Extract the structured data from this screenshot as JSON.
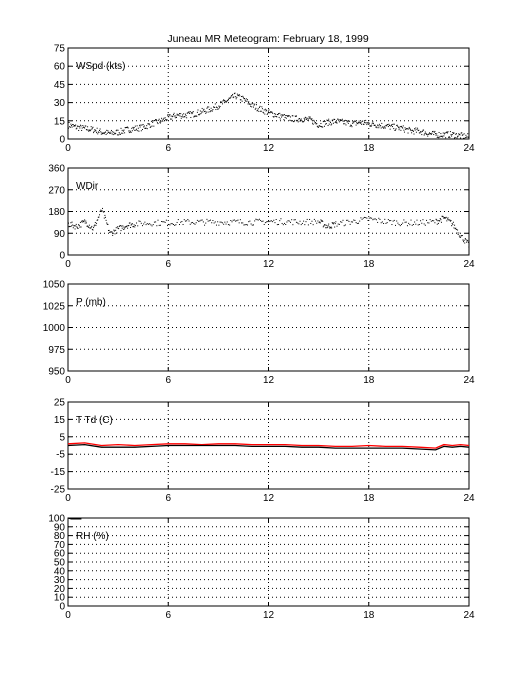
{
  "title": "Juneau MR Meteogram:  February 18, 1999",
  "colors": {
    "axes": "#000000",
    "grid": "#000000",
    "background": "#ffffff",
    "dewpoint": "#ff0000",
    "temperature": "#000000",
    "points": "#000000"
  },
  "chart_data": [
    {
      "type": "scatter",
      "panel_label": "WSpd (kts)",
      "xlim": [
        0,
        24
      ],
      "xticks": [
        0,
        6,
        12,
        18,
        24
      ],
      "ylim": [
        0,
        75
      ],
      "yticks": [
        0,
        15,
        30,
        45,
        60,
        75
      ],
      "grid": true,
      "series": [
        {
          "x": [
            0,
            0.5,
            1,
            1.5,
            2,
            2.5,
            3,
            3.5,
            4,
            4.5,
            5,
            5.5,
            6,
            6.5,
            7,
            7.5,
            8,
            8.5,
            9,
            9.5,
            10,
            10.5,
            11,
            11.5,
            12,
            12.5,
            13,
            13.5,
            14,
            14.5,
            15,
            15.5,
            16,
            16.5,
            17,
            17.5,
            18,
            18.5,
            19,
            19.5,
            20,
            20.5,
            21,
            21.5,
            22,
            22.5,
            23,
            23.5,
            24
          ],
          "y": [
            12,
            10,
            9,
            8,
            6,
            5,
            6,
            8,
            9,
            10,
            13,
            15,
            18,
            20,
            20,
            21,
            23,
            25,
            28,
            32,
            36,
            33,
            28,
            25,
            22,
            20,
            18,
            17,
            17,
            16,
            12,
            14,
            15,
            14,
            13,
            14,
            13,
            12,
            11,
            10,
            9,
            7,
            7,
            5,
            4,
            4,
            4,
            3,
            2
          ]
        }
      ]
    },
    {
      "type": "scatter",
      "panel_label": "WDir",
      "xlim": [
        0,
        24
      ],
      "xticks": [
        0,
        6,
        12,
        18,
        24
      ],
      "ylim": [
        0,
        360
      ],
      "yticks": [
        0,
        90,
        180,
        270,
        360
      ],
      "grid": true,
      "series": [
        {
          "x": [
            0,
            0.5,
            1,
            1.5,
            2,
            2.5,
            3,
            3.5,
            4,
            5,
            6,
            7,
            8,
            9,
            10,
            11,
            12,
            13,
            14,
            15,
            15.5,
            16,
            17,
            18,
            19,
            20,
            21,
            22,
            22.5,
            23,
            23.5,
            24
          ],
          "y": [
            130,
            120,
            140,
            110,
            190,
            90,
            110,
            125,
            130,
            135,
            135,
            138,
            138,
            138,
            138,
            138,
            140,
            140,
            138,
            140,
            120,
            130,
            140,
            150,
            140,
            135,
            135,
            140,
            155,
            130,
            80,
            40
          ]
        }
      ]
    },
    {
      "type": "line",
      "panel_label": "P (mb)",
      "xlim": [
        0,
        24
      ],
      "xticks": [
        0,
        6,
        12,
        18,
        24
      ],
      "ylim": [
        950,
        1050
      ],
      "yticks": [
        950,
        975,
        1000,
        1025,
        1050
      ],
      "grid": true,
      "series": []
    },
    {
      "type": "line",
      "panel_label": "T Td (C)",
      "xlim": [
        0,
        24
      ],
      "xticks": [
        0,
        6,
        12,
        18,
        24
      ],
      "ylim": [
        -25,
        25
      ],
      "yticks": [
        -25,
        -15,
        -5,
        5,
        15,
        25
      ],
      "grid": true,
      "series": [
        {
          "color": "#ff0000",
          "x": [
            0,
            1,
            2,
            3,
            4,
            5,
            6,
            7,
            8,
            9,
            10,
            11,
            12,
            13,
            14,
            15,
            16,
            17,
            18,
            19,
            20,
            21,
            22,
            22.5,
            23,
            23.5,
            24
          ],
          "y": [
            1,
            1.5,
            0,
            0.5,
            0,
            0.5,
            1,
            1,
            0.5,
            1,
            1,
            0.5,
            0.5,
            0.5,
            0,
            0,
            -0.5,
            -0.5,
            0,
            -0.5,
            -0.5,
            -1,
            -1.5,
            0.5,
            0,
            0.5,
            0
          ]
        },
        {
          "color": "#000000",
          "x": [
            0,
            1,
            2,
            3,
            4,
            5,
            6,
            7,
            8,
            9,
            10,
            11,
            12,
            13,
            14,
            15,
            16,
            17,
            18,
            19,
            20,
            21,
            22,
            22.5,
            23,
            23.5,
            24
          ],
          "y": [
            0,
            0.5,
            -1,
            -1,
            -1,
            -0.5,
            0,
            0,
            0,
            0,
            0,
            -0.5,
            -0.5,
            -0.5,
            -1,
            -1,
            -1.5,
            -1.5,
            -1.5,
            -1.5,
            -1.5,
            -2,
            -2.5,
            -0.5,
            -1,
            -0.5,
            -1
          ]
        }
      ]
    },
    {
      "type": "line",
      "panel_label": "RH (%)",
      "xlim": [
        0,
        24
      ],
      "xticks": [
        0,
        6,
        12,
        18,
        24
      ],
      "ylim": [
        0,
        100
      ],
      "yticks": [
        0,
        10,
        20,
        30,
        40,
        50,
        60,
        70,
        80,
        90,
        100
      ],
      "grid": true,
      "series": [
        {
          "color": "#000000",
          "x": [
            0,
            0.2,
            0.4,
            0.6,
            0.8
          ],
          "y": [
            100,
            99,
            99,
            99,
            99
          ]
        }
      ]
    }
  ]
}
